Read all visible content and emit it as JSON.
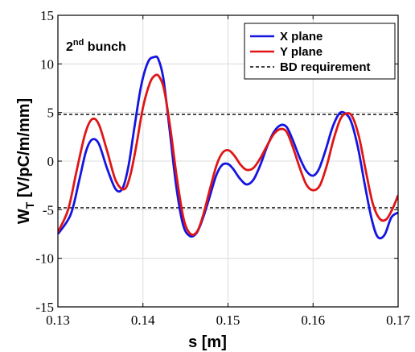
{
  "chart_data": {
    "type": "line",
    "xlabel": "s [m]",
    "ylabel_main": "W",
    "ylabel_sub": "T",
    "ylabel_rest": " [V/pC/m/mm]",
    "xlim": [
      0.13,
      0.17
    ],
    "ylim": [
      -15,
      15
    ],
    "xticks": [
      0.13,
      0.14,
      0.15,
      0.16,
      0.17
    ],
    "xtick_labels": [
      "0.13",
      "0.14",
      "0.15",
      "0.16",
      "0.17"
    ],
    "yticks": [
      -15,
      -10,
      -5,
      0,
      5,
      10,
      15
    ],
    "ytick_labels": [
      "-15",
      "-10",
      "-5",
      "0",
      "5",
      "10",
      "15"
    ],
    "grid": true,
    "legend_position": "top-right",
    "annotation": {
      "main": "2",
      "sup": "nd",
      "rest": " bunch"
    },
    "thresholds": [
      4.8,
      -4.8
    ],
    "series": [
      {
        "name": "X plane",
        "color": "#1515e0",
        "x": [
          0.13,
          0.1315,
          0.1325,
          0.1333,
          0.134,
          0.1348,
          0.1358,
          0.1368,
          0.1376,
          0.1383,
          0.139,
          0.1398,
          0.1406,
          0.1413,
          0.1418,
          0.1424,
          0.1431,
          0.1439,
          0.1447,
          0.1455,
          0.1463,
          0.147,
          0.1478,
          0.1486,
          0.1493,
          0.15,
          0.1506,
          0.1514,
          0.1522,
          0.153,
          0.1538,
          0.1546,
          0.1554,
          0.1562,
          0.1569,
          0.1576,
          0.1584,
          0.1592,
          0.16,
          0.1607,
          0.1615,
          0.1623,
          0.1631,
          0.1638,
          0.1645,
          0.1653,
          0.1661,
          0.1669,
          0.1676,
          0.1684,
          0.1692,
          0.17
        ],
        "y": [
          -7.5,
          -5.5,
          -2.0,
          1.0,
          2.2,
          1.8,
          -0.8,
          -2.9,
          -2.8,
          -0.5,
          3.5,
          7.8,
          10.2,
          10.7,
          10.5,
          8.5,
          3.5,
          -2.5,
          -6.5,
          -7.7,
          -7.4,
          -6.0,
          -3.8,
          -1.5,
          -0.4,
          -0.3,
          -0.8,
          -1.8,
          -2.4,
          -1.9,
          -0.4,
          1.5,
          3.0,
          3.7,
          3.5,
          2.2,
          0.4,
          -1.0,
          -1.5,
          -0.8,
          1.2,
          3.5,
          4.9,
          4.9,
          4.0,
          1.3,
          -2.5,
          -6.0,
          -7.8,
          -7.6,
          -5.8,
          -5.3
        ]
      },
      {
        "name": "Y plane",
        "color": "#e01515",
        "x": [
          0.13,
          0.1312,
          0.1322,
          0.1332,
          0.134,
          0.1348,
          0.1358,
          0.1368,
          0.1378,
          0.1385,
          0.1392,
          0.14,
          0.1408,
          0.1414,
          0.1419,
          0.1425,
          0.1432,
          0.144,
          0.1448,
          0.1456,
          0.1464,
          0.1471,
          0.1479,
          0.1487,
          0.1494,
          0.1501,
          0.1508,
          0.1515,
          0.1522,
          0.153,
          0.1538,
          0.1546,
          0.1554,
          0.1562,
          0.1569,
          0.1576,
          0.1584,
          0.1592,
          0.16,
          0.1608,
          0.1616,
          0.1624,
          0.1632,
          0.1639,
          0.1646,
          0.1654,
          0.1662,
          0.167,
          0.1678,
          0.1686,
          0.1694,
          0.17
        ],
        "y": [
          -7.3,
          -5.0,
          -1.0,
          2.8,
          4.3,
          3.8,
          1.0,
          -2.0,
          -2.9,
          -1.5,
          1.5,
          5.5,
          8.0,
          8.8,
          8.7,
          7.3,
          3.5,
          -1.8,
          -6.0,
          -7.5,
          -7.2,
          -5.5,
          -2.8,
          -0.3,
          0.9,
          1.1,
          0.5,
          -0.4,
          -0.9,
          -0.7,
          0.3,
          1.6,
          2.8,
          3.3,
          3.0,
          1.5,
          -0.6,
          -2.4,
          -3.0,
          -2.5,
          -0.5,
          2.2,
          4.3,
          4.9,
          4.6,
          2.5,
          -1.0,
          -4.3,
          -5.9,
          -6.0,
          -4.8,
          -3.5
        ]
      },
      {
        "name": "BD requirement",
        "color": "#000000",
        "style": "dashed"
      }
    ]
  }
}
